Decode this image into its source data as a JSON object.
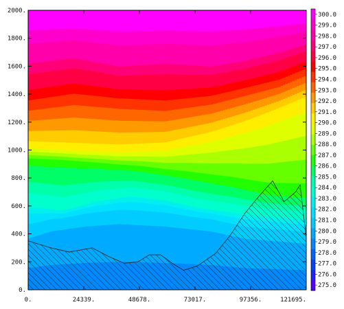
{
  "chart_data": {
    "type": "heatmap",
    "title": "",
    "xlabel": "",
    "ylabel": "",
    "x_ticks": [
      "0.",
      "24339.",
      "48678.",
      "73017.",
      "97356.",
      "121695."
    ],
    "y_ticks": [
      "0.",
      "200.",
      "400.",
      "600.",
      "800.",
      "1000.",
      "1200.",
      "1400.",
      "1600.",
      "1800.",
      "2000."
    ],
    "xlim": [
      0,
      121695
    ],
    "ylim": [
      0,
      2000
    ],
    "colorbar_ticks": [
      "275.0",
      "276.0",
      "277.0",
      "278.0",
      "279.0",
      "280.0",
      "281.0",
      "282.0",
      "283.0",
      "284.0",
      "285.0",
      "286.0",
      "287.0",
      "288.0",
      "289.0",
      "290.0",
      "291.0",
      "292.0",
      "293.0",
      "294.0",
      "295.0",
      "296.0",
      "297.0",
      "298.0",
      "299.0",
      "300.0"
    ],
    "colorbar_colors": [
      "#5500ff",
      "#2222ff",
      "#0044ff",
      "#0066ff",
      "#0088ff",
      "#00aaff",
      "#00ccff",
      "#00e0ff",
      "#00f0ee",
      "#00ffcc",
      "#00ffaa",
      "#00ff66",
      "#22ff00",
      "#66ff00",
      "#aaff00",
      "#ddff00",
      "#ffee00",
      "#ffcc00",
      "#ff9900",
      "#ff6600",
      "#ff3300",
      "#ff0000",
      "#ff0044",
      "#ff0077",
      "#ff00aa",
      "#ff00cc",
      "#ff00ff"
    ],
    "colorbar_range": [
      274.5,
      300.5
    ],
    "value_field": "temperature",
    "contour_levels": [
      {
        "min": 278.5,
        "max": 280.5,
        "depth_profile": [
          [
            0,
            420
          ],
          [
            10000,
            480
          ],
          [
            25000,
            520
          ],
          [
            40000,
            540
          ],
          [
            60000,
            520
          ],
          [
            80000,
            480
          ],
          [
            95000,
            420
          ],
          [
            121695,
            380
          ]
        ]
      },
      {
        "min": 280.5,
        "max": 283.5,
        "depth_profile": [
          [
            0,
            620
          ],
          [
            15000,
            580
          ],
          [
            30000,
            650
          ],
          [
            45000,
            690
          ],
          [
            60000,
            660
          ],
          [
            75000,
            600
          ],
          [
            95000,
            560
          ],
          [
            121695,
            520
          ]
        ]
      },
      {
        "min": 283.5,
        "max": 286.5,
        "depth_profile": [
          [
            0,
            930
          ],
          [
            15000,
            920
          ],
          [
            30000,
            900
          ],
          [
            50000,
            870
          ],
          [
            70000,
            820
          ],
          [
            90000,
            760
          ],
          [
            105000,
            700
          ],
          [
            121695,
            680
          ]
        ]
      },
      {
        "min": 286.5,
        "max": 290.5,
        "depth_profile": [
          [
            0,
            1030
          ],
          [
            20000,
            1010
          ],
          [
            40000,
            1000
          ],
          [
            60000,
            1020
          ],
          [
            80000,
            1100
          ],
          [
            95000,
            1180
          ],
          [
            110000,
            1280
          ],
          [
            121695,
            1360
          ]
        ]
      },
      {
        "min": 290.5,
        "max": 294.5,
        "depth_profile": [
          [
            0,
            1320
          ],
          [
            20000,
            1370
          ],
          [
            40000,
            1340
          ],
          [
            60000,
            1320
          ],
          [
            80000,
            1360
          ],
          [
            95000,
            1420
          ],
          [
            110000,
            1480
          ],
          [
            121695,
            1560
          ]
        ]
      },
      {
        "min": 294.5,
        "max": 297.5,
        "depth_profile": [
          [
            0,
            1620
          ],
          [
            20000,
            1660
          ],
          [
            40000,
            1600
          ],
          [
            60000,
            1620
          ],
          [
            80000,
            1600
          ],
          [
            95000,
            1640
          ],
          [
            110000,
            1700
          ],
          [
            121695,
            1760
          ]
        ]
      },
      {
        "min": 297.5,
        "max": 300.5,
        "depth_profile": [
          [
            0,
            2000
          ],
          [
            121695,
            2000
          ]
        ]
      }
    ],
    "terrain": [
      [
        0,
        350
      ],
      [
        10000,
        300
      ],
      [
        18000,
        270
      ],
      [
        28000,
        300
      ],
      [
        35000,
        240
      ],
      [
        42000,
        190
      ],
      [
        48000,
        200
      ],
      [
        53000,
        250
      ],
      [
        58000,
        250
      ],
      [
        63000,
        190
      ],
      [
        68000,
        140
      ],
      [
        74000,
        170
      ],
      [
        82000,
        260
      ],
      [
        88000,
        380
      ],
      [
        95000,
        550
      ],
      [
        100000,
        650
      ],
      [
        107000,
        780
      ],
      [
        112000,
        630
      ],
      [
        117000,
        700
      ],
      [
        119000,
        750
      ],
      [
        121695,
        370
      ]
    ]
  }
}
